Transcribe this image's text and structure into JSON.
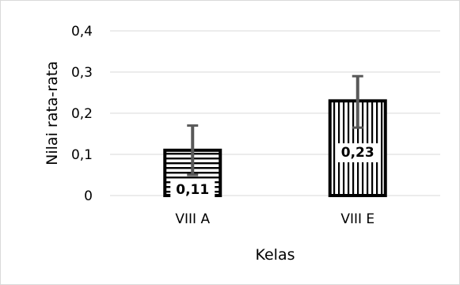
{
  "chart_data": {
    "type": "bar",
    "categories": [
      "VIII A",
      "VIII E"
    ],
    "values": [
      0.11,
      0.23
    ],
    "error_bars": [
      {
        "low": 0.05,
        "high": 0.17
      },
      {
        "low": 0.165,
        "high": 0.29
      }
    ],
    "data_labels": [
      "0,11",
      "0,23"
    ],
    "bar_patterns": [
      "horizontal-stripes",
      "vertical-stripes"
    ],
    "xlabel": "Kelas",
    "ylabel": "Nilai rata-rata",
    "ylim": [
      0,
      0.4
    ],
    "yticks": [
      0,
      0.1,
      0.2,
      0.3,
      0.4
    ],
    "ytick_labels": [
      "0",
      "0,1",
      "0,2",
      "0,3",
      "0,4"
    ],
    "grid": true,
    "colors": {
      "bar_stroke": "#000000",
      "error_bar": "#595959",
      "grid": "#d9d9d9",
      "fill": "#ffffff"
    }
  }
}
